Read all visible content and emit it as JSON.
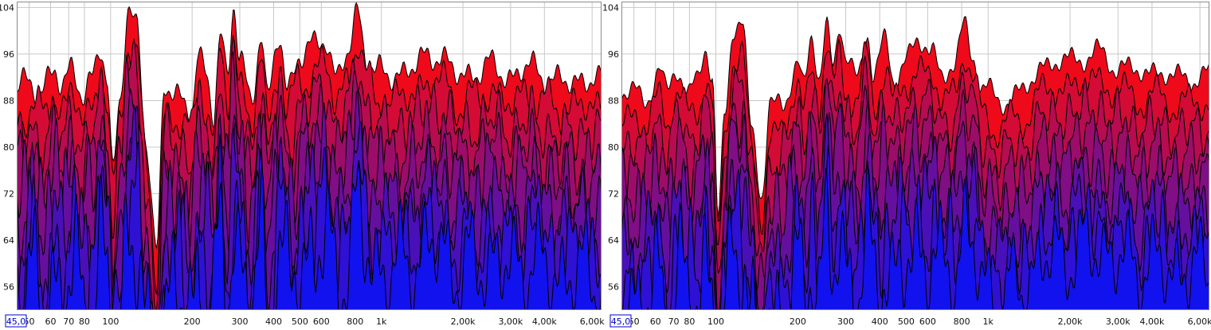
{
  "colors": {
    "bottom": "#1212ee",
    "top": "#ee0a1a",
    "outline": "#000000",
    "grid": "#c8c8c8",
    "cursor": "#0000cc"
  },
  "chart_data": [
    {
      "type": "area",
      "title": "",
      "xlabel": "",
      "ylabel": "",
      "x_scale": "log",
      "xlim": [
        45,
        6500
      ],
      "ylim": [
        52,
        105
      ],
      "grid": true,
      "y_ticks": [
        "104",
        "96",
        "88",
        "80",
        "72",
        "64",
        "56"
      ],
      "y_tick_values": [
        104,
        96,
        88,
        80,
        72,
        64,
        56
      ],
      "x_ticks": [
        "50",
        "60",
        "70",
        "80",
        "100",
        "200",
        "300",
        "400",
        "500",
        "600",
        "800",
        "1k",
        "2,00k",
        "3,00k",
        "4,00k",
        "6,00k"
      ],
      "x_tick_values": [
        50,
        60,
        70,
        80,
        100,
        200,
        300,
        400,
        500,
        600,
        800,
        1000,
        2000,
        3000,
        4000,
        6000
      ],
      "cursor_label": "45,0",
      "layers": 9,
      "top_envelope": [
        [
          45,
          90
        ],
        [
          50,
          91
        ],
        [
          55,
          90
        ],
        [
          62,
          93
        ],
        [
          66,
          90
        ],
        [
          72,
          94
        ],
        [
          80,
          89
        ],
        [
          85,
          91
        ],
        [
          92,
          97
        ],
        [
          97,
          92
        ],
        [
          102,
          76
        ],
        [
          108,
          88
        ],
        [
          116,
          103
        ],
        [
          125,
          100
        ],
        [
          135,
          82
        ],
        [
          148,
          62
        ],
        [
          158,
          90
        ],
        [
          175,
          89
        ],
        [
          200,
          87
        ],
        [
          210,
          95
        ],
        [
          225,
          92
        ],
        [
          240,
          86
        ],
        [
          255,
          100
        ],
        [
          270,
          92
        ],
        [
          285,
          104
        ],
        [
          300,
          95
        ],
        [
          330,
          88
        ],
        [
          360,
          100
        ],
        [
          380,
          88
        ],
        [
          420,
          99
        ],
        [
          450,
          90
        ],
        [
          500,
          96
        ],
        [
          560,
          97
        ],
        [
          620,
          99
        ],
        [
          680,
          92
        ],
        [
          750,
          96
        ],
        [
          820,
          103
        ],
        [
          880,
          96
        ],
        [
          950,
          93
        ],
        [
          1100,
          92
        ],
        [
          1300,
          94
        ],
        [
          1600,
          96
        ],
        [
          2000,
          92
        ],
        [
          2500,
          94
        ],
        [
          3000,
          92
        ],
        [
          3500,
          94
        ],
        [
          4000,
          92
        ],
        [
          5000,
          91
        ],
        [
          6000,
          92
        ],
        [
          6500,
          91
        ]
      ],
      "roughness": 3.0
    },
    {
      "type": "area",
      "title": "",
      "xlabel": "",
      "ylabel": "",
      "x_scale": "log",
      "xlim": [
        45,
        6500
      ],
      "ylim": [
        52,
        105
      ],
      "grid": true,
      "y_ticks": [
        "104",
        "96",
        "88",
        "80",
        "72",
        "64",
        "56"
      ],
      "y_tick_values": [
        104,
        96,
        88,
        80,
        72,
        64,
        56
      ],
      "x_ticks": [
        "50",
        "60",
        "70",
        "80",
        "100",
        "200",
        "300",
        "400",
        "500",
        "600",
        "800",
        "1k",
        "2,00k",
        "3,00k",
        "4,00k",
        "6,00k"
      ],
      "x_tick_values": [
        50,
        60,
        70,
        80,
        100,
        200,
        300,
        400,
        500,
        600,
        800,
        1000,
        2000,
        3000,
        4000,
        6000
      ],
      "cursor_label": "45,0",
      "layers": 9,
      "top_envelope": [
        [
          45,
          89
        ],
        [
          50,
          90
        ],
        [
          55,
          88
        ],
        [
          62,
          93
        ],
        [
          66,
          89
        ],
        [
          72,
          94
        ],
        [
          80,
          89
        ],
        [
          85,
          91
        ],
        [
          92,
          97
        ],
        [
          97,
          92
        ],
        [
          102,
          68
        ],
        [
          108,
          86
        ],
        [
          116,
          100
        ],
        [
          125,
          101
        ],
        [
          135,
          84
        ],
        [
          148,
          72
        ],
        [
          158,
          86
        ],
        [
          175,
          88
        ],
        [
          200,
          94
        ],
        [
          210,
          90
        ],
        [
          225,
          99
        ],
        [
          240,
          92
        ],
        [
          255,
          101
        ],
        [
          270,
          94
        ],
        [
          285,
          101
        ],
        [
          300,
          95
        ],
        [
          330,
          92
        ],
        [
          360,
          100
        ],
        [
          380,
          92
        ],
        [
          420,
          98
        ],
        [
          450,
          92
        ],
        [
          500,
          95
        ],
        [
          560,
          98
        ],
        [
          620,
          97
        ],
        [
          680,
          92
        ],
        [
          750,
          94
        ],
        [
          820,
          101
        ],
        [
          880,
          96
        ],
        [
          950,
          90
        ],
        [
          1100,
          88
        ],
        [
          1300,
          89
        ],
        [
          1600,
          94
        ],
        [
          2000,
          95
        ],
        [
          2500,
          96
        ],
        [
          3000,
          94
        ],
        [
          3500,
          93
        ],
        [
          4000,
          93
        ],
        [
          5000,
          92
        ],
        [
          6000,
          92
        ],
        [
          6500,
          92
        ]
      ],
      "roughness": 2.6
    }
  ]
}
